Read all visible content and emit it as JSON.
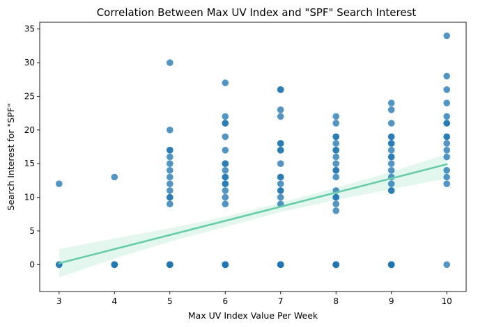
{
  "chart_data": {
    "type": "scatter",
    "title": "Correlation Between Max UV Index and \"SPF\" Search Interest",
    "xlabel": "Max UV Index Value Per Week",
    "ylabel": "Search Interest for \"SPF\"",
    "xlim": [
      2.65,
      10.35
    ],
    "ylim": [
      -4,
      36
    ],
    "xticks": [
      "3",
      "4",
      "5",
      "6",
      "7",
      "8",
      "9",
      "10"
    ],
    "yticks": [
      "0",
      "5",
      "10",
      "15",
      "20",
      "25",
      "30",
      "35"
    ],
    "grid": false,
    "colors": {
      "points": "#1f77b4",
      "regression_line": "#66cdaa",
      "confidence_band": "#ccf0e2"
    },
    "points": [
      {
        "x": 3,
        "ys": [
          0,
          0,
          12
        ]
      },
      {
        "x": 4,
        "ys": [
          0,
          0,
          0,
          13
        ]
      },
      {
        "x": 5,
        "ys": [
          0,
          0,
          0,
          0,
          9,
          10,
          10,
          11,
          12,
          13,
          14,
          15,
          16,
          17,
          17,
          20,
          30
        ]
      },
      {
        "x": 6,
        "ys": [
          0,
          0,
          0,
          0,
          0,
          9,
          10,
          11,
          12,
          12,
          13,
          13,
          14,
          15,
          15,
          17,
          19,
          21,
          21,
          22,
          27
        ]
      },
      {
        "x": 7,
        "ys": [
          0,
          0,
          0,
          0,
          0,
          9,
          10,
          11,
          11,
          12,
          13,
          13,
          15,
          17,
          17,
          18,
          18,
          22,
          23,
          26,
          26
        ]
      },
      {
        "x": 8,
        "ys": [
          0,
          0,
          0,
          0,
          0,
          8,
          9,
          10,
          10,
          11,
          13,
          14,
          14,
          15,
          16,
          17,
          17,
          18,
          19,
          19,
          21,
          22
        ]
      },
      {
        "x": 9,
        "ys": [
          0,
          0,
          0,
          0,
          0,
          11,
          11,
          12,
          13,
          14,
          15,
          16,
          16,
          17,
          18,
          18,
          19,
          19,
          21,
          23,
          24
        ]
      },
      {
        "x": 10,
        "ys": [
          0,
          12,
          13,
          14,
          16,
          17,
          18,
          19,
          19,
          21,
          21,
          22,
          24,
          26,
          28,
          34
        ]
      }
    ],
    "regression": {
      "x": [
        3,
        10
      ],
      "y": [
        0.2,
        14.9
      ]
    },
    "confidence_band": [
      {
        "x": 3,
        "lower": -1.9,
        "upper": 2.3
      },
      {
        "x": 4,
        "lower": 0.9,
        "upper": 3.9
      },
      {
        "x": 5,
        "lower": 3.4,
        "upper": 5.4
      },
      {
        "x": 6,
        "lower": 5.6,
        "upper": 7.1
      },
      {
        "x": 7,
        "lower": 7.8,
        "upper": 9.2
      },
      {
        "x": 8,
        "lower": 9.6,
        "upper": 11.4
      },
      {
        "x": 9,
        "lower": 11.2,
        "upper": 13.8
      },
      {
        "x": 10,
        "lower": 12.8,
        "upper": 16.4
      }
    ]
  }
}
